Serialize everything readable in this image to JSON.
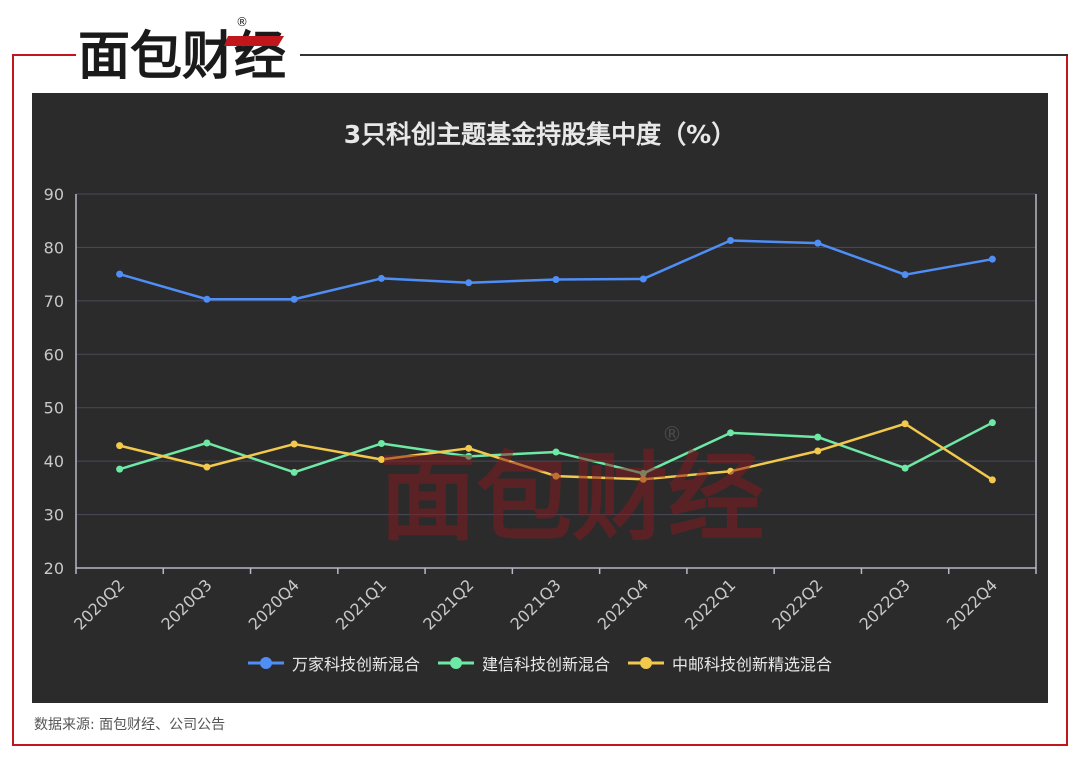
{
  "logo": {
    "text": "面包财经",
    "registered_mark": "®"
  },
  "source": "数据来源: 面包财经、公司公告",
  "colors": {
    "frame_red": "#c0161c",
    "chart_bg": "#2b2b2b",
    "grid": "#4a4a5a",
    "axis": "#b8b8c8",
    "tick_text": "#c8c8c8"
  },
  "chart_data": {
    "type": "line",
    "title": "3只科创主题基金持股集中度（%）",
    "categories": [
      "2020Q2",
      "2020Q3",
      "2020Q4",
      "2021Q1",
      "2021Q2",
      "2021Q3",
      "2021Q4",
      "2022Q1",
      "2022Q2",
      "2022Q3",
      "2022Q4"
    ],
    "yticks": [
      20,
      30,
      40,
      50,
      60,
      70,
      80,
      90
    ],
    "ylim": [
      20,
      90
    ],
    "grid": true,
    "legend_position": "bottom-center",
    "series": [
      {
        "name": "万家科技创新混合",
        "color": "#4f8ef7",
        "values": [
          75.0,
          70.3,
          70.3,
          74.2,
          73.4,
          74.0,
          74.1,
          81.3,
          80.8,
          74.9,
          77.8
        ]
      },
      {
        "name": "建信科技创新混合",
        "color": "#6ee8a5",
        "values": [
          38.5,
          43.4,
          37.9,
          43.3,
          40.9,
          41.7,
          37.7,
          45.3,
          44.5,
          38.7,
          47.2
        ]
      },
      {
        "name": "中邮科技创新精选混合",
        "color": "#f2c94c",
        "values": [
          42.9,
          38.9,
          43.2,
          40.3,
          42.4,
          37.2,
          36.6,
          38.1,
          41.9,
          47.0,
          36.5
        ]
      }
    ]
  }
}
